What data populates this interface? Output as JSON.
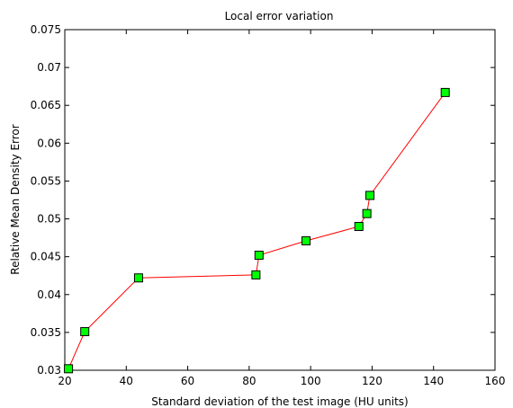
{
  "chart_data": {
    "type": "line",
    "title": "Local error variation",
    "xlabel": "Standard deviation of the test image (HU units)",
    "ylabel": "Relative Mean Density Error",
    "xlim": [
      20,
      160
    ],
    "ylim": [
      0.03,
      0.075
    ],
    "xticks": [
      "20",
      "40",
      "60",
      "80",
      "100",
      "120",
      "140",
      "160"
    ],
    "yticks": [
      "0.03",
      "0.035",
      "0.04",
      "0.045",
      "0.05",
      "0.055",
      "0.06",
      "0.065",
      "0.07",
      "0.075"
    ],
    "grid": false,
    "line_color": "#ff0000",
    "marker_fill": "#00ff00",
    "marker_edge": "#000000",
    "marker": "square",
    "series": [
      {
        "x": [
          21.2,
          26.5,
          44.0,
          82.2,
          83.2,
          98.5,
          115.7,
          118.3,
          119.3,
          143.8
        ],
        "y": [
          0.0302,
          0.0351,
          0.0422,
          0.0426,
          0.0452,
          0.0471,
          0.049,
          0.0507,
          0.0531,
          0.0667
        ]
      }
    ]
  }
}
